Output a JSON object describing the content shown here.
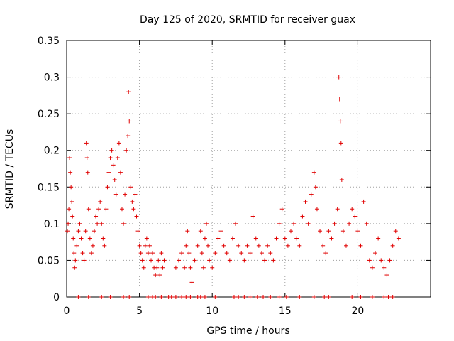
{
  "chart_data": {
    "type": "scatter",
    "title": "Day 125 of 2020, SRMTID for receiver guax",
    "xlabel": "GPS time / hours",
    "ylabel": "SRMTID / TECUs",
    "xlim": [
      0,
      25
    ],
    "ylim": [
      0,
      0.35
    ],
    "x_ticks": [
      0,
      5,
      10,
      15,
      20
    ],
    "x_tick_labels": [
      "0",
      "5",
      "10",
      "15",
      "20"
    ],
    "y_ticks": [
      0,
      0.05,
      0.1,
      0.15,
      0.2,
      0.25,
      0.3,
      0.35
    ],
    "y_tick_labels": [
      "0",
      "0.05",
      "0.1",
      "0.15",
      "0.2",
      "0.25",
      "0.3",
      "0.35"
    ],
    "grid": true,
    "marker": "+",
    "color": "#e00000",
    "series": [
      {
        "name": "SRMTID",
        "points": [
          [
            0.05,
            0.09
          ],
          [
            0.1,
            0.1
          ],
          [
            0.15,
            0.12
          ],
          [
            0.2,
            0.19
          ],
          [
            0.25,
            0.17
          ],
          [
            0.3,
            0.15
          ],
          [
            0.35,
            0.13
          ],
          [
            0.4,
            0.11
          ],
          [
            0.45,
            0.08
          ],
          [
            0.5,
            0.06
          ],
          [
            0.55,
            0.04
          ],
          [
            0.6,
            0.05
          ],
          [
            0.7,
            0.07
          ],
          [
            0.8,
            0.09
          ],
          [
            0.9,
            0.1
          ],
          [
            1.0,
            0.08
          ],
          [
            1.1,
            0.06
          ],
          [
            1.2,
            0.05
          ],
          [
            1.3,
            0.09
          ],
          [
            1.35,
            0.21
          ],
          [
            1.4,
            0.19
          ],
          [
            1.45,
            0.17
          ],
          [
            1.5,
            0.12
          ],
          [
            1.6,
            0.08
          ],
          [
            1.7,
            0.06
          ],
          [
            1.8,
            0.07
          ],
          [
            1.9,
            0.09
          ],
          [
            2.0,
            0.11
          ],
          [
            2.1,
            0.1
          ],
          [
            2.2,
            0.12
          ],
          [
            2.3,
            0.13
          ],
          [
            2.4,
            0.1
          ],
          [
            2.5,
            0.08
          ],
          [
            2.6,
            0.07
          ],
          [
            2.7,
            0.12
          ],
          [
            2.8,
            0.15
          ],
          [
            2.9,
            0.17
          ],
          [
            3.0,
            0.19
          ],
          [
            3.1,
            0.2
          ],
          [
            3.2,
            0.18
          ],
          [
            3.3,
            0.16
          ],
          [
            3.4,
            0.14
          ],
          [
            3.5,
            0.19
          ],
          [
            3.6,
            0.21
          ],
          [
            3.7,
            0.17
          ],
          [
            3.8,
            0.12
          ],
          [
            3.9,
            0.1
          ],
          [
            4.0,
            0.14
          ],
          [
            4.1,
            0.2
          ],
          [
            4.2,
            0.22
          ],
          [
            4.25,
            0.28
          ],
          [
            4.3,
            0.24
          ],
          [
            4.4,
            0.15
          ],
          [
            4.5,
            0.13
          ],
          [
            4.6,
            0.12
          ],
          [
            4.7,
            0.14
          ],
          [
            4.8,
            0.11
          ],
          [
            4.9,
            0.09
          ],
          [
            5.0,
            0.07
          ],
          [
            5.1,
            0.06
          ],
          [
            5.2,
            0.05
          ],
          [
            5.3,
            0.04
          ],
          [
            5.4,
            0.07
          ],
          [
            5.5,
            0.08
          ],
          [
            5.6,
            0.06
          ],
          [
            5.7,
            0.07
          ],
          [
            5.8,
            0.05
          ],
          [
            5.9,
            0.06
          ],
          [
            6.0,
            0.04
          ],
          [
            6.1,
            0.03
          ],
          [
            6.2,
            0.04
          ],
          [
            6.3,
            0.05
          ],
          [
            6.4,
            0.03
          ],
          [
            6.5,
            0.06
          ],
          [
            6.6,
            0.04
          ],
          [
            6.7,
            0.05
          ],
          [
            7.5,
            0.04
          ],
          [
            7.7,
            0.05
          ],
          [
            7.9,
            0.06
          ],
          [
            8.1,
            0.04
          ],
          [
            8.2,
            0.07
          ],
          [
            8.3,
            0.09
          ],
          [
            8.4,
            0.06
          ],
          [
            8.5,
            0.04
          ],
          [
            8.6,
            0.02
          ],
          [
            8.8,
            0.05
          ],
          [
            9.0,
            0.07
          ],
          [
            9.2,
            0.09
          ],
          [
            9.3,
            0.06
          ],
          [
            9.4,
            0.04
          ],
          [
            9.5,
            0.08
          ],
          [
            9.6,
            0.1
          ],
          [
            9.7,
            0.07
          ],
          [
            9.8,
            0.05
          ],
          [
            10.0,
            0.04
          ],
          [
            10.2,
            0.06
          ],
          [
            10.4,
            0.08
          ],
          [
            10.6,
            0.09
          ],
          [
            10.8,
            0.07
          ],
          [
            11.0,
            0.06
          ],
          [
            11.2,
            0.05
          ],
          [
            11.4,
            0.08
          ],
          [
            11.6,
            0.1
          ],
          [
            11.8,
            0.07
          ],
          [
            12.0,
            0.06
          ],
          [
            12.2,
            0.05
          ],
          [
            12.4,
            0.07
          ],
          [
            12.6,
            0.06
          ],
          [
            12.8,
            0.11
          ],
          [
            13.0,
            0.08
          ],
          [
            13.2,
            0.07
          ],
          [
            13.4,
            0.06
          ],
          [
            13.6,
            0.05
          ],
          [
            13.8,
            0.07
          ],
          [
            14.0,
            0.06
          ],
          [
            14.2,
            0.05
          ],
          [
            14.4,
            0.08
          ],
          [
            14.6,
            0.1
          ],
          [
            14.8,
            0.12
          ],
          [
            15.0,
            0.08
          ],
          [
            15.2,
            0.07
          ],
          [
            15.4,
            0.09
          ],
          [
            15.6,
            0.1
          ],
          [
            15.8,
            0.08
          ],
          [
            16.0,
            0.07
          ],
          [
            16.2,
            0.11
          ],
          [
            16.4,
            0.13
          ],
          [
            16.6,
            0.1
          ],
          [
            16.8,
            0.14
          ],
          [
            17.0,
            0.17
          ],
          [
            17.1,
            0.15
          ],
          [
            17.2,
            0.12
          ],
          [
            17.4,
            0.09
          ],
          [
            17.6,
            0.07
          ],
          [
            17.8,
            0.06
          ],
          [
            18.0,
            0.09
          ],
          [
            18.2,
            0.08
          ],
          [
            18.4,
            0.1
          ],
          [
            18.6,
            0.12
          ],
          [
            18.7,
            0.3
          ],
          [
            18.75,
            0.27
          ],
          [
            18.8,
            0.24
          ],
          [
            18.85,
            0.21
          ],
          [
            18.9,
            0.16
          ],
          [
            19.0,
            0.09
          ],
          [
            19.2,
            0.07
          ],
          [
            19.4,
            0.1
          ],
          [
            19.6,
            0.12
          ],
          [
            19.8,
            0.11
          ],
          [
            20.0,
            0.09
          ],
          [
            20.2,
            0.07
          ],
          [
            20.4,
            0.13
          ],
          [
            20.6,
            0.1
          ],
          [
            20.8,
            0.05
          ],
          [
            21.0,
            0.04
          ],
          [
            21.2,
            0.06
          ],
          [
            21.4,
            0.08
          ],
          [
            21.6,
            0.05
          ],
          [
            21.8,
            0.04
          ],
          [
            22.0,
            0.03
          ],
          [
            22.2,
            0.05
          ],
          [
            22.4,
            0.07
          ],
          [
            22.6,
            0.09
          ],
          [
            22.8,
            0.08
          ]
        ],
        "zero_points": [
          0.8,
          1.5,
          2.4,
          3.0,
          3.9,
          4.3,
          5.6,
          5.9,
          6.1,
          6.5,
          7.0,
          7.2,
          7.5,
          7.9,
          8.2,
          8.5,
          9.0,
          9.2,
          9.5,
          10.2,
          11.5,
          11.8,
          12.2,
          12.6,
          13.1,
          13.5,
          14.0,
          14.6,
          15.1,
          16.0,
          17.0,
          17.7,
          18.0,
          19.6,
          20.2,
          21.0,
          21.8,
          22.1,
          22.4
        ]
      }
    ]
  }
}
